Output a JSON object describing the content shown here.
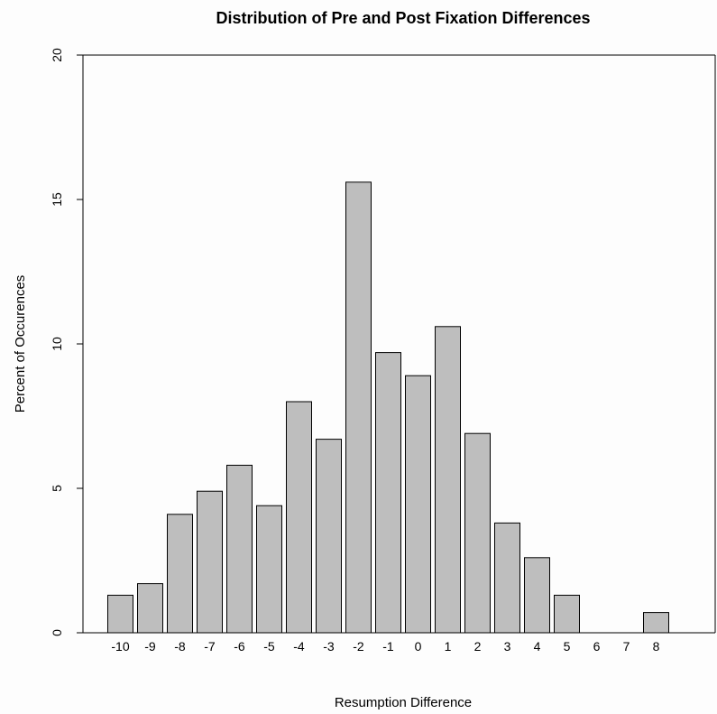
{
  "chart_data": {
    "type": "bar",
    "title": "Distribution of Pre and Post Fixation Differences",
    "xlabel": "Resumption Difference",
    "ylabel": "Percent of Occurences",
    "categories": [
      "-10",
      "-9",
      "-8",
      "-7",
      "-6",
      "-5",
      "-4",
      "-3",
      "-2",
      "-1",
      "0",
      "1",
      "2",
      "3",
      "4",
      "5",
      "6",
      "7",
      "8"
    ],
    "values": [
      1.3,
      1.7,
      4.1,
      4.9,
      5.8,
      4.4,
      8.0,
      6.7,
      15.6,
      9.7,
      8.9,
      10.6,
      6.9,
      3.8,
      2.6,
      1.3,
      0,
      0,
      0.7
    ],
    "ylim": [
      0,
      20
    ],
    "yticks": [
      "0",
      "5",
      "10",
      "15",
      "20"
    ],
    "bar_color": "#bebebe",
    "grid": false
  }
}
